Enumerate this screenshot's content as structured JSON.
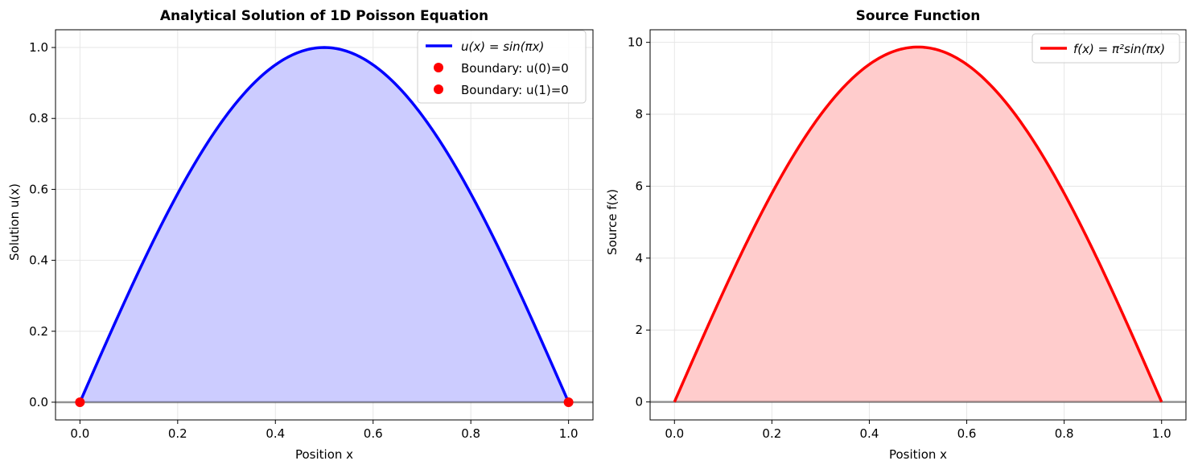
{
  "chart_data": [
    {
      "type": "line",
      "title": "Analytical Solution of 1D Poisson Equation",
      "xlabel": "Position x",
      "ylabel": "Solution u(x)",
      "xlim": [
        -0.05,
        1.05
      ],
      "ylim": [
        -0.05,
        1.05
      ],
      "xticks": [
        0.0,
        0.2,
        0.4,
        0.6,
        0.8,
        1.0
      ],
      "xtick_labels": [
        "0.0",
        "0.2",
        "0.4",
        "0.6",
        "0.8",
        "1.0"
      ],
      "yticks": [
        0.0,
        0.2,
        0.4,
        0.6,
        0.8,
        1.0
      ],
      "ytick_labels": [
        "0.0",
        "0.2",
        "0.4",
        "0.6",
        "0.8",
        "1.0"
      ],
      "grid": true,
      "legend_position": "upper right",
      "fill_under_curve": true,
      "baseline_y": 0,
      "colors": {
        "line": "#0000ff",
        "fill": "#ccccff",
        "marker": "#ff0000"
      },
      "series": [
        {
          "name": "u(x) = sin(πx)",
          "kind": "line",
          "x": [
            0.0,
            0.05,
            0.1,
            0.15,
            0.2,
            0.25,
            0.3,
            0.35,
            0.4,
            0.45,
            0.5,
            0.55,
            0.6,
            0.65,
            0.7,
            0.75,
            0.8,
            0.85,
            0.9,
            0.95,
            1.0
          ],
          "y": [
            0.0,
            0.156,
            0.309,
            0.454,
            0.588,
            0.707,
            0.809,
            0.891,
            0.951,
            0.988,
            1.0,
            0.988,
            0.951,
            0.891,
            0.809,
            0.707,
            0.588,
            0.454,
            0.309,
            0.156,
            0.0
          ]
        },
        {
          "name": "Boundary: u(0)=0",
          "kind": "point",
          "x": [
            0.0
          ],
          "y": [
            0.0
          ]
        },
        {
          "name": "Boundary: u(1)=0",
          "kind": "point",
          "x": [
            1.0
          ],
          "y": [
            0.0
          ]
        }
      ]
    },
    {
      "type": "line",
      "title": "Source Function",
      "xlabel": "Position x",
      "ylabel": "Source f(x)",
      "xlim": [
        -0.05,
        1.05
      ],
      "ylim": [
        -0.5,
        10.35
      ],
      "xticks": [
        0.0,
        0.2,
        0.4,
        0.6,
        0.8,
        1.0
      ],
      "xtick_labels": [
        "0.0",
        "0.2",
        "0.4",
        "0.6",
        "0.8",
        "1.0"
      ],
      "yticks": [
        0,
        2,
        4,
        6,
        8,
        10
      ],
      "ytick_labels": [
        "0",
        "2",
        "4",
        "6",
        "8",
        "10"
      ],
      "grid": true,
      "legend_position": "upper right",
      "fill_under_curve": true,
      "baseline_y": 0,
      "colors": {
        "line": "#ff0000",
        "fill": "#ffcccc"
      },
      "series": [
        {
          "name": "f(x) = π²sin(πx)",
          "kind": "line",
          "x": [
            0.0,
            0.05,
            0.1,
            0.15,
            0.2,
            0.25,
            0.3,
            0.35,
            0.4,
            0.45,
            0.5,
            0.55,
            0.6,
            0.65,
            0.7,
            0.75,
            0.8,
            0.85,
            0.9,
            0.95,
            1.0
          ],
          "y": [
            0.0,
            1.544,
            3.05,
            4.481,
            5.801,
            6.979,
            7.985,
            8.794,
            9.387,
            9.748,
            9.87,
            9.748,
            9.387,
            8.794,
            7.985,
            6.979,
            5.801,
            4.481,
            3.05,
            1.544,
            0.0
          ]
        }
      ]
    }
  ]
}
